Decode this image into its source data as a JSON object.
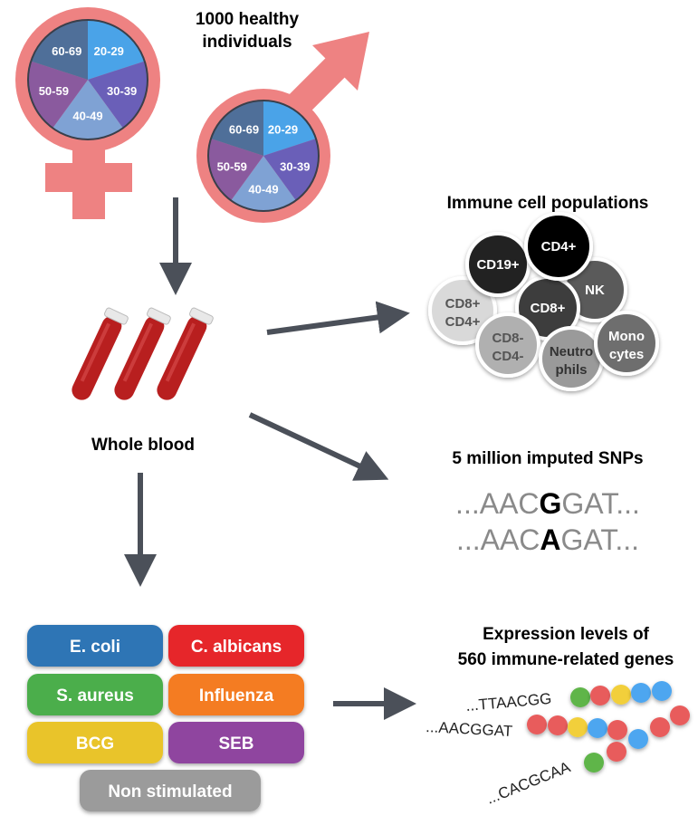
{
  "cohort": {
    "title_line1": "1000 healthy",
    "title_line2": "individuals"
  },
  "age_groups": [
    {
      "label": "20-29",
      "color": "#4aa3e8"
    },
    {
      "label": "30-39",
      "color": "#6a5fb8"
    },
    {
      "label": "40-49",
      "color": "#7fa2d4"
    },
    {
      "label": "50-59",
      "color": "#8a5a9e"
    },
    {
      "label": "60-69",
      "color": "#4f6f99"
    }
  ],
  "sex_symbol_color": "#ee8282",
  "arrow_color": "#4b5059",
  "blood": {
    "label": "Whole blood",
    "tube_color": "#b81f1f"
  },
  "immune": {
    "title": "Immune cell populations",
    "cells": [
      {
        "id": "nk",
        "line1": "NK",
        "line2": "",
        "fill": "#5a5a5a",
        "text": "#ffffff"
      },
      {
        "id": "cd8cd4",
        "line1": "CD8+",
        "line2": "CD4+",
        "fill": "#d9d9d9",
        "text": "#555555"
      },
      {
        "id": "cd19",
        "line1": "CD19+",
        "line2": "",
        "fill": "#222222",
        "text": "#ffffff"
      },
      {
        "id": "cd8",
        "line1": "CD8+",
        "line2": "",
        "fill": "#3c3c3c",
        "text": "#ffffff"
      },
      {
        "id": "cd4",
        "line1": "CD4+",
        "line2": "",
        "fill": "#000000",
        "text": "#ffffff"
      },
      {
        "id": "dn",
        "line1": "CD8-",
        "line2": "CD4-",
        "fill": "#b0b0b0",
        "text": "#555555"
      },
      {
        "id": "neutro",
        "line1": "Neutro",
        "line2": "phils",
        "fill": "#9a9a9a",
        "text": "#333333"
      },
      {
        "id": "mono",
        "line1": "Mono",
        "line2": "cytes",
        "fill": "#6e6e6e",
        "text": "#ffffff"
      }
    ]
  },
  "snps": {
    "title": "5 million imputed SNPs",
    "seq1": {
      "prefix": "...AAC",
      "allele": "G",
      "suffix": "GAT..."
    },
    "seq2": {
      "prefix": "...AAC",
      "allele": "A",
      "suffix": "GAT..."
    }
  },
  "stimuli": [
    {
      "label": "E. coli",
      "color": "#2f74b5"
    },
    {
      "label": "C. albicans",
      "color": "#e6262b"
    },
    {
      "label": "S. aureus",
      "color": "#4cae4c"
    },
    {
      "label": "Influenza",
      "color": "#f47b20"
    },
    {
      "label": "BCG",
      "color": "#e9c42c"
    },
    {
      "label": "SEB",
      "color": "#8f449f"
    },
    {
      "label": "Non stimulated",
      "color": "#9b9b9b"
    }
  ],
  "expression": {
    "title_line1": "Expression levels of",
    "title_line2": "560 immune-related genes",
    "sequences": [
      {
        "text": "...TTAACGG",
        "dots": [
          "#5fb548",
          "#e85c5c",
          "#f2cf3a",
          "#4ea6f0",
          "#4ea6f0"
        ]
      },
      {
        "text": "...AACGGAT",
        "dots": [
          "#e85c5c",
          "#e85c5c",
          "#f2cf3a",
          "#4ea6f0",
          "#e85c5c"
        ]
      },
      {
        "text": "...CACGCAA",
        "dots": [
          "#5fb548",
          "#e85c5c",
          "#4ea6f0",
          "#e85c5c",
          "#e85c5c"
        ]
      }
    ]
  }
}
